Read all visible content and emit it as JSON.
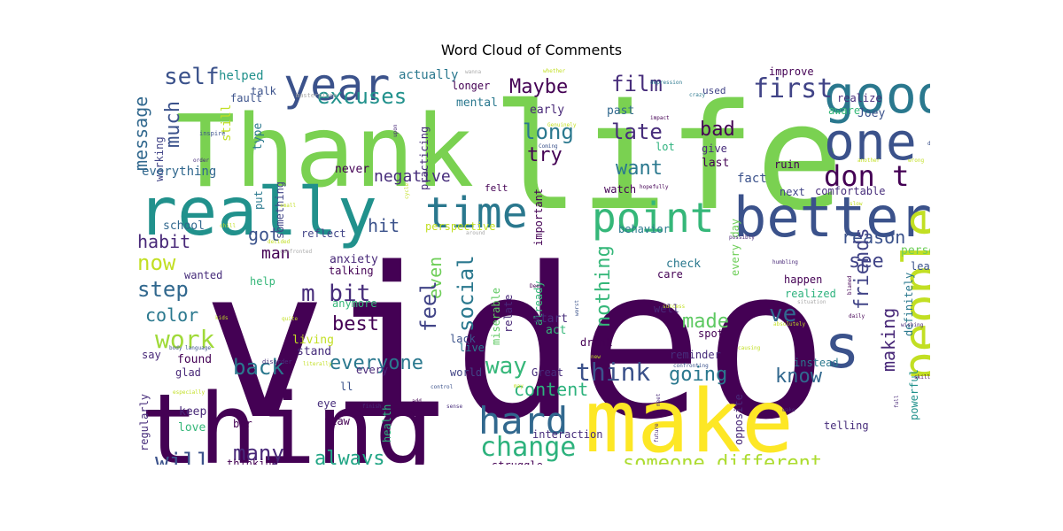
{
  "chart_data": {
    "type": "wordcloud",
    "title": "Word Cloud of Comments",
    "words": [
      {
        "text": "video",
        "size": 235,
        "color": "#440154"
      },
      {
        "text": "Thank",
        "size": 112,
        "color": "#7ad151"
      },
      {
        "text": "life",
        "size": 165,
        "color": "#7ad151"
      },
      {
        "text": "make",
        "size": 98,
        "color": "#fde725"
      },
      {
        "text": "thing",
        "size": 110,
        "color": "#440154"
      },
      {
        "text": "really",
        "size": 75,
        "color": "#21918c"
      },
      {
        "text": "time",
        "size": 48,
        "color": "#2a788e"
      },
      {
        "text": "better",
        "size": 62,
        "color": "#3b528b"
      },
      {
        "text": "good",
        "size": 58,
        "color": "#2a788e"
      },
      {
        "text": "one",
        "size": 58,
        "color": "#3b528b"
      },
      {
        "text": "year",
        "size": 50,
        "color": "#3b528b"
      },
      {
        "text": "people",
        "size": 54,
        "color": "#c2df23"
      },
      {
        "text": "s",
        "size": 68,
        "color": "#3b528b"
      },
      {
        "text": "point",
        "size": 46,
        "color": "#35b779"
      },
      {
        "text": "hard",
        "size": 42,
        "color": "#31688e"
      },
      {
        "text": "change",
        "size": 30,
        "color": "#2db27d"
      },
      {
        "text": "don t",
        "size": 32,
        "color": "#440154"
      },
      {
        "text": "first",
        "size": 30,
        "color": "#414487"
      },
      {
        "text": "film",
        "size": 24,
        "color": "#472d7b"
      },
      {
        "text": "Maybe",
        "size": 22,
        "color": "#440154"
      },
      {
        "text": "excuses",
        "size": 24,
        "color": "#21918c"
      },
      {
        "text": "self",
        "size": 26,
        "color": "#3b528b"
      },
      {
        "text": "much",
        "size": 22,
        "color": "#3b528b"
      },
      {
        "text": "message",
        "size": 20,
        "color": "#31688e"
      },
      {
        "text": "long",
        "size": 24,
        "color": "#2a788e"
      },
      {
        "text": "late",
        "size": 24,
        "color": "#472d7b"
      },
      {
        "text": "bad",
        "size": 22,
        "color": "#440154"
      },
      {
        "text": "try",
        "size": 22,
        "color": "#440154"
      },
      {
        "text": "want",
        "size": 22,
        "color": "#2a788e"
      },
      {
        "text": "negative",
        "size": 18,
        "color": "#472d7b"
      },
      {
        "text": "hit",
        "size": 20,
        "color": "#3b528b"
      },
      {
        "text": "even",
        "size": 20,
        "color": "#6ece58"
      },
      {
        "text": "social",
        "size": 24,
        "color": "#2a788e"
      },
      {
        "text": "nothing",
        "size": 22,
        "color": "#35b779"
      },
      {
        "text": "now",
        "size": 24,
        "color": "#c2df23"
      },
      {
        "text": "habit",
        "size": 20,
        "color": "#482878"
      },
      {
        "text": "got",
        "size": 20,
        "color": "#3b528b"
      },
      {
        "text": "man",
        "size": 18,
        "color": "#440154"
      },
      {
        "text": "step",
        "size": 24,
        "color": "#31688e"
      },
      {
        "text": "m bit",
        "size": 26,
        "color": "#472d7b"
      },
      {
        "text": "feel",
        "size": 24,
        "color": "#414487"
      },
      {
        "text": "color",
        "size": 20,
        "color": "#2a788e"
      },
      {
        "text": "work",
        "size": 28,
        "color": "#a0da39"
      },
      {
        "text": "best",
        "size": 22,
        "color": "#440154"
      },
      {
        "text": "back",
        "size": 24,
        "color": "#2a788e"
      },
      {
        "text": "everyone",
        "size": 22,
        "color": "#2a788e"
      },
      {
        "text": "way",
        "size": 26,
        "color": "#35b779"
      },
      {
        "text": "think",
        "size": 28,
        "color": "#3b528b"
      },
      {
        "text": "going",
        "size": 22,
        "color": "#2a788e"
      },
      {
        "text": "know",
        "size": 22,
        "color": "#31688e"
      },
      {
        "text": "reason",
        "size": 20,
        "color": "#3b528b"
      },
      {
        "text": "see",
        "size": 22,
        "color": "#414487"
      },
      {
        "text": "ve",
        "size": 26,
        "color": "#31688e"
      },
      {
        "text": "made",
        "size": 22,
        "color": "#5ec962"
      },
      {
        "text": "friends",
        "size": 22,
        "color": "#414487"
      },
      {
        "text": "making",
        "size": 20,
        "color": "#482878"
      },
      {
        "text": "content",
        "size": 20,
        "color": "#2db27d"
      },
      {
        "text": "many",
        "size": 24,
        "color": "#482878"
      },
      {
        "text": "always",
        "size": 22,
        "color": "#21a585"
      },
      {
        "text": "will",
        "size": 26,
        "color": "#3b528b"
      },
      {
        "text": "someone different",
        "size": 22,
        "color": "#addc30"
      },
      {
        "text": "helped",
        "size": 14,
        "color": "#21918c"
      },
      {
        "text": "actually",
        "size": 14,
        "color": "#2a788e"
      },
      {
        "text": "longer",
        "size": 12,
        "color": "#440154"
      },
      {
        "text": "mental",
        "size": 13,
        "color": "#2a788e"
      },
      {
        "text": "early",
        "size": 13,
        "color": "#482878"
      },
      {
        "text": "past",
        "size": 13,
        "color": "#31688e"
      },
      {
        "text": "improve",
        "size": 12,
        "color": "#440154"
      },
      {
        "text": "realize",
        "size": 12,
        "color": "#472d7b"
      },
      {
        "text": "used",
        "size": 11,
        "color": "#414487"
      },
      {
        "text": "aware",
        "size": 12,
        "color": "#35b779"
      },
      {
        "text": "Joey",
        "size": 13,
        "color": "#3b528b"
      },
      {
        "text": "fault",
        "size": 12,
        "color": "#3b528b"
      },
      {
        "text": "talk",
        "size": 12,
        "color": "#3b528b"
      },
      {
        "text": "still",
        "size": 14,
        "color": "#c2df23"
      },
      {
        "text": "type",
        "size": 13,
        "color": "#2a788e"
      },
      {
        "text": "working",
        "size": 12,
        "color": "#414487"
      },
      {
        "text": "everything",
        "size": 14,
        "color": "#31688e"
      },
      {
        "text": "practicing",
        "size": 12,
        "color": "#472d7b"
      },
      {
        "text": "never",
        "size": 13,
        "color": "#440154"
      },
      {
        "text": "lot",
        "size": 12,
        "color": "#2db27d"
      },
      {
        "text": "give",
        "size": 12,
        "color": "#472d7b"
      },
      {
        "text": "last",
        "size": 13,
        "color": "#440154"
      },
      {
        "text": "fact",
        "size": 14,
        "color": "#3b528b"
      },
      {
        "text": "ruin",
        "size": 12,
        "color": "#440154"
      },
      {
        "text": "comfortable",
        "size": 12,
        "color": "#472d7b"
      },
      {
        "text": "recognize",
        "size": 12,
        "color": "#c2df23"
      },
      {
        "text": "next",
        "size": 12,
        "color": "#414487"
      },
      {
        "text": "watch",
        "size": 12,
        "color": "#440154"
      },
      {
        "text": "felt",
        "size": 11,
        "color": "#440154"
      },
      {
        "text": "important",
        "size": 12,
        "color": "#440154"
      },
      {
        "text": "school",
        "size": 13,
        "color": "#31688e"
      },
      {
        "text": "put",
        "size": 12,
        "color": "#2a788e"
      },
      {
        "text": "something",
        "size": 12,
        "color": "#414487"
      },
      {
        "text": "reflect",
        "size": 12,
        "color": "#414487"
      },
      {
        "text": "perspective",
        "size": 12,
        "color": "#c2df23"
      },
      {
        "text": "behavior",
        "size": 12,
        "color": "#2a788e"
      },
      {
        "text": "anxiety",
        "size": 13,
        "color": "#482878"
      },
      {
        "text": "talking",
        "size": 12,
        "color": "#440154"
      },
      {
        "text": "wanted",
        "size": 12,
        "color": "#472d7b"
      },
      {
        "text": "help",
        "size": 12,
        "color": "#35b779"
      },
      {
        "text": "anymore",
        "size": 12,
        "color": "#35b779"
      },
      {
        "text": "living",
        "size": 13,
        "color": "#c2df23"
      },
      {
        "text": "stand",
        "size": 13,
        "color": "#472d7b"
      },
      {
        "text": "say",
        "size": 12,
        "color": "#482878"
      },
      {
        "text": "found",
        "size": 13,
        "color": "#440154"
      },
      {
        "text": "glad",
        "size": 12,
        "color": "#482878"
      },
      {
        "text": "relate",
        "size": 12,
        "color": "#482878"
      },
      {
        "text": "already",
        "size": 12,
        "color": "#35b779"
      },
      {
        "text": "miserable",
        "size": 12,
        "color": "#5ec962"
      },
      {
        "text": "start",
        "size": 13,
        "color": "#472d7b"
      },
      {
        "text": "act",
        "size": 13,
        "color": "#35b779"
      },
      {
        "text": "lack",
        "size": 12,
        "color": "#3b528b"
      },
      {
        "text": "live",
        "size": 12,
        "color": "#2a788e"
      },
      {
        "text": "check",
        "size": 13,
        "color": "#2a788e"
      },
      {
        "text": "care",
        "size": 12,
        "color": "#440154"
      },
      {
        "text": "well",
        "size": 12,
        "color": "#482878"
      },
      {
        "text": "spot",
        "size": 12,
        "color": "#440154"
      },
      {
        "text": "drink",
        "size": 12,
        "color": "#440154"
      },
      {
        "text": "every day",
        "size": 12,
        "color": "#6ece58"
      },
      {
        "text": "happen",
        "size": 12,
        "color": "#440154"
      },
      {
        "text": "realized",
        "size": 12,
        "color": "#2db27d"
      },
      {
        "text": "person",
        "size": 13,
        "color": "#6ece58"
      },
      {
        "text": "learn",
        "size": 12,
        "color": "#3b528b"
      },
      {
        "text": "definitely",
        "size": 12,
        "color": "#2a788e"
      },
      {
        "text": "reminder",
        "size": 12,
        "color": "#472d7b"
      },
      {
        "text": "instead",
        "size": 12,
        "color": "#2a788e"
      },
      {
        "text": "Great",
        "size": 12,
        "color": "#472d7b"
      },
      {
        "text": "every",
        "size": 12,
        "color": "#482878"
      },
      {
        "text": "ll",
        "size": 12,
        "color": "#3b528b"
      },
      {
        "text": "eye",
        "size": 12,
        "color": "#472d7b"
      },
      {
        "text": "world",
        "size": 12,
        "color": "#414487"
      },
      {
        "text": "flaw",
        "size": 12,
        "color": "#440154"
      },
      {
        "text": "keep",
        "size": 13,
        "color": "#482878"
      },
      {
        "text": "love",
        "size": 13,
        "color": "#35b779"
      },
      {
        "text": "bar",
        "size": 12,
        "color": "#440154"
      },
      {
        "text": "health",
        "size": 12,
        "color": "#2db27d"
      },
      {
        "text": "interaction",
        "size": 12,
        "color": "#472d7b"
      },
      {
        "text": "opposite",
        "size": 12,
        "color": "#482878"
      },
      {
        "text": "telling",
        "size": 12,
        "color": "#472d7b"
      },
      {
        "text": "powerful",
        "size": 12,
        "color": "#21918c"
      },
      {
        "text": "thinking",
        "size": 12,
        "color": "#440154"
      },
      {
        "text": "struggle",
        "size": 12,
        "color": "#440154"
      },
      {
        "text": "regularly",
        "size": 12,
        "color": "#472d7b"
      },
      {
        "text": "depression",
        "size": 6,
        "color": "#2a788e"
      },
      {
        "text": "crazy",
        "size": 6,
        "color": "#2a788e"
      },
      {
        "text": "wanna",
        "size": 6,
        "color": "#aaaaaa"
      },
      {
        "text": "whether",
        "size": 6,
        "color": "#c2df23"
      },
      {
        "text": "masterpiece",
        "size": 7,
        "color": "#aaaaaa"
      },
      {
        "text": "inspire",
        "size": 7,
        "color": "#3b528b"
      },
      {
        "text": "order",
        "size": 6,
        "color": "#472d7b"
      },
      {
        "text": "upon",
        "size": 6,
        "color": "#482878"
      },
      {
        "text": "Genuinely",
        "size": 6,
        "color": "#c2df23"
      },
      {
        "text": "impact",
        "size": 6,
        "color": "#440154"
      },
      {
        "text": "Coming",
        "size": 6,
        "color": "#3b528b"
      },
      {
        "text": "done",
        "size": 6,
        "color": "#3b528b"
      },
      {
        "text": "another",
        "size": 6,
        "color": "#c2df23"
      },
      {
        "text": "wrong",
        "size": 6,
        "color": "#c2df23"
      },
      {
        "text": "chill",
        "size": 6,
        "color": "#c2df23"
      },
      {
        "text": "small",
        "size": 6,
        "color": "#c2df23"
      },
      {
        "text": "cycle",
        "size": 6,
        "color": "#c2df23"
      },
      {
        "text": "hopefully",
        "size": 6,
        "color": "#440154"
      },
      {
        "text": "slow",
        "size": 6,
        "color": "#c2df23"
      },
      {
        "text": "success",
        "size": 6,
        "color": "#c2df23"
      },
      {
        "text": "possibly",
        "size": 6,
        "color": "#482878"
      },
      {
        "text": "around",
        "size": 6,
        "color": "#aaaaaa"
      },
      {
        "text": "Deep",
        "size": 6,
        "color": "#440154"
      },
      {
        "text": "humbling",
        "size": 6,
        "color": "#482878"
      },
      {
        "text": "blamed",
        "size": 6,
        "color": "#440154"
      },
      {
        "text": "situation",
        "size": 6,
        "color": "#aaaaaa"
      },
      {
        "text": "daily",
        "size": 6,
        "color": "#440154"
      },
      {
        "text": "decided",
        "size": 6,
        "color": "#c2df23"
      },
      {
        "text": "confronted",
        "size": 6,
        "color": "#aaaaaa"
      },
      {
        "text": "kids",
        "size": 6,
        "color": "#c2df23"
      },
      {
        "text": "quite",
        "size": 6,
        "color": "#c2df23"
      },
      {
        "text": "worst",
        "size": 6,
        "color": "#3b528b"
      },
      {
        "text": "absolutely",
        "size": 6,
        "color": "#c2df23"
      },
      {
        "text": "wishing",
        "size": 6,
        "color": "#482878"
      },
      {
        "text": "body language",
        "size": 6,
        "color": "#3b528b"
      },
      {
        "text": "disorder",
        "size": 7,
        "color": "#472d7b"
      },
      {
        "text": "literally",
        "size": 6,
        "color": "#c2df23"
      },
      {
        "text": "new",
        "size": 6,
        "color": "#c2df23"
      },
      {
        "text": "causing",
        "size": 6,
        "color": "#c2df23"
      },
      {
        "text": "especially",
        "size": 6,
        "color": "#c2df23"
      },
      {
        "text": "finish",
        "size": 6,
        "color": "#472d7b"
      },
      {
        "text": "control",
        "size": 6,
        "color": "#3b528b"
      },
      {
        "text": "confronting",
        "size": 6,
        "color": "#3b528b"
      },
      {
        "text": "add",
        "size": 6,
        "color": "#440154"
      },
      {
        "text": "sense",
        "size": 6,
        "color": "#472d7b"
      },
      {
        "text": "may",
        "size": 6,
        "color": "#c2df23"
      },
      {
        "text": "meet",
        "size": 6,
        "color": "#482878"
      },
      {
        "text": "wake",
        "size": 6,
        "color": "#482878"
      },
      {
        "text": "skills",
        "size": 6,
        "color": "#440154"
      },
      {
        "text": "full",
        "size": 6,
        "color": "#482878"
      },
      {
        "text": "future",
        "size": 6,
        "color": "#482878"
      },
      {
        "text": "go",
        "size": 6,
        "color": "#482878"
      }
    ]
  }
}
